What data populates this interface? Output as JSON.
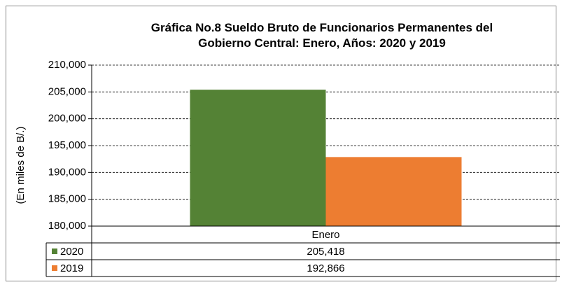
{
  "chart_data": {
    "type": "bar",
    "title": "Gráfica No.8 Sueldo Bruto de Funcionarios Permanentes del Gobierno Central: Enero, Años: 2020 y 2019",
    "ylabel": "(En miles de B/.)",
    "categories": [
      "Enero"
    ],
    "series": [
      {
        "name": "2020",
        "color": "#548235",
        "values": [
          205418
        ],
        "value_labels": [
          "205,418"
        ]
      },
      {
        "name": "2019",
        "color": "#ed7d31",
        "values": [
          192866
        ],
        "value_labels": [
          "192,866"
        ]
      }
    ],
    "ylim": [
      180000,
      210000
    ],
    "yticks": [
      {
        "value": 180000,
        "label": "180,000"
      },
      {
        "value": 185000,
        "label": "185,000"
      },
      {
        "value": 190000,
        "label": "190,000"
      },
      {
        "value": 195000,
        "label": "195,000"
      },
      {
        "value": 200000,
        "label": "200,000"
      },
      {
        "value": 205000,
        "label": "205,000"
      },
      {
        "value": 210000,
        "label": "210,000"
      }
    ],
    "grid": true
  }
}
